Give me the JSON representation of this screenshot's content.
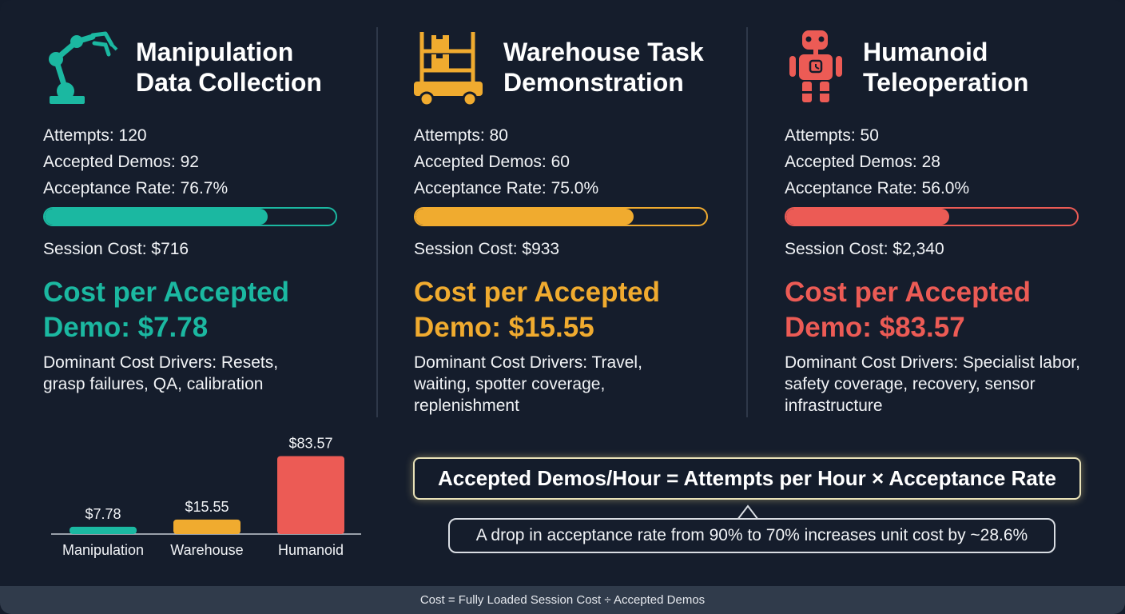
{
  "colors": {
    "teal": "#1bb8a1",
    "amber": "#f0ab2f",
    "coral": "#ec5b55",
    "background": "#151d2c",
    "footer": "#303b4b"
  },
  "cards": [
    {
      "icon": "robot-arm-icon",
      "title_line1": "Manipulation",
      "title_line2": "Data Collection",
      "attempts": "Attempts: 120",
      "accepted": "Accepted Demos: 92",
      "rate": "Acceptance Rate: 76.7%",
      "rate_value": 0.767,
      "session_cost": "Session Cost: $716",
      "cpa_line1": "Cost per Accepted",
      "cpa_line2": "Demo: $7.78",
      "drivers": "Dominant Cost Drivers: Resets, grasp failures, QA, calibration"
    },
    {
      "icon": "warehouse-cart-icon",
      "title_line1": "Warehouse Task",
      "title_line2": "Demonstration",
      "attempts": "Attempts: 80",
      "accepted": "Accepted Demos: 60",
      "rate": "Acceptance Rate: 75.0%",
      "rate_value": 0.75,
      "session_cost": "Session Cost: $933",
      "cpa_line1": "Cost per Accepted",
      "cpa_line2": "Demo: $15.55",
      "drivers": "Dominant Cost Drivers: Travel, waiting, spotter coverage, replenishment"
    },
    {
      "icon": "humanoid-robot-icon",
      "title_line1": "Humanoid",
      "title_line2": "Teleoperation",
      "attempts": "Attempts: 50",
      "accepted": "Accepted Demos: 28",
      "rate": "Acceptance Rate: 56.0%",
      "rate_value": 0.56,
      "session_cost": "Session Cost: $2,340",
      "cpa_line1": "Cost per Accepted",
      "cpa_line2": "Demo: $83.57",
      "drivers": "Dominant Cost Drivers: Specialist labor, safety coverage, recovery, sensor infrastructure"
    }
  ],
  "chart_data": {
    "type": "bar",
    "categories": [
      "Manipulation",
      "Warehouse",
      "Humanoid"
    ],
    "values": [
      7.78,
      15.55,
      83.57
    ],
    "value_labels": [
      "$7.78",
      "$15.55",
      "$83.57"
    ],
    "colors": [
      "#1bb8a1",
      "#f0ab2f",
      "#ec5b55"
    ],
    "ylim": [
      0,
      90
    ],
    "grid": false,
    "title": "",
    "xlabel": "",
    "ylabel": ""
  },
  "formula": "Accepted Demos/Hour = Attempts per Hour × Acceptance Rate",
  "callout": "A drop in acceptance rate from 90% to 70% increases unit cost by ~28.6%",
  "footer": "Cost = Fully Loaded Session Cost ÷ Accepted Demos"
}
